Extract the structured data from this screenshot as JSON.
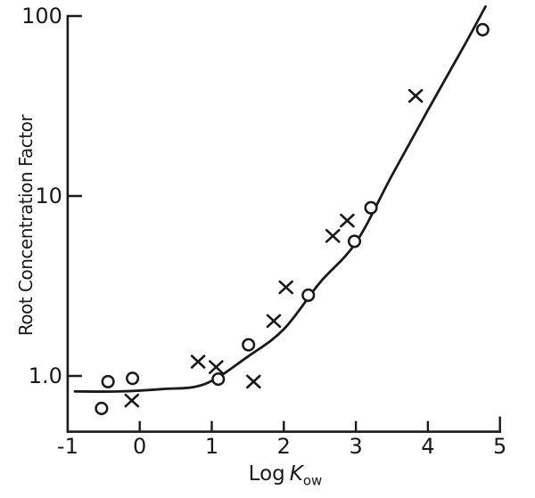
{
  "figure": {
    "background": "#ffffff",
    "ink_color": "#1a1a1a"
  },
  "chart_data": {
    "type": "scatter",
    "ylabel": "Root Concentration Factor",
    "xlabel": {
      "text": "Log",
      "symbol": "K",
      "subscript": "ow"
    },
    "x_axis": {
      "scale": "linear",
      "min": -1,
      "max": 5,
      "ticks": [
        -1,
        0,
        1,
        2,
        3,
        4,
        5
      ],
      "tick_labels": [
        "-1",
        "0",
        "1",
        "2",
        "3",
        "4",
        "5"
      ]
    },
    "y_axis": {
      "scale": "log",
      "min": 0.49,
      "max": 100,
      "ticks": [
        1,
        10,
        100
      ],
      "tick_labels": [
        "1.0",
        "10",
        "100"
      ]
    },
    "grid": false,
    "legend": "none",
    "series": [
      {
        "name": "circle-points",
        "marker": "circle",
        "points": [
          [
            -0.53,
            0.66
          ],
          [
            -0.44,
            0.93
          ],
          [
            -0.1,
            0.97
          ],
          [
            1.09,
            0.96
          ],
          [
            1.51,
            1.49
          ],
          [
            2.34,
            2.81
          ],
          [
            2.98,
            5.6
          ],
          [
            3.21,
            8.6
          ],
          [
            4.76,
            84
          ]
        ]
      },
      {
        "name": "x-points",
        "marker": "x",
        "points": [
          [
            -0.11,
            0.73
          ],
          [
            0.81,
            1.2
          ],
          [
            1.06,
            1.12
          ],
          [
            1.58,
            0.93
          ],
          [
            1.86,
            2.02
          ],
          [
            2.03,
            3.11
          ],
          [
            2.68,
            6.0
          ],
          [
            2.88,
            7.3
          ],
          [
            3.83,
            36
          ]
        ]
      }
    ],
    "fitted_curve": {
      "name": "fitted-curve",
      "points": [
        [
          -0.9,
          0.82
        ],
        [
          -0.3,
          0.82
        ],
        [
          0.3,
          0.845
        ],
        [
          0.9,
          0.9
        ],
        [
          1.5,
          1.28
        ],
        [
          2.0,
          1.82
        ],
        [
          2.5,
          3.3
        ],
        [
          3.0,
          5.5
        ],
        [
          3.5,
          13
        ],
        [
          4.0,
          30
        ],
        [
          4.5,
          68
        ],
        [
          4.8,
          113
        ]
      ]
    }
  }
}
